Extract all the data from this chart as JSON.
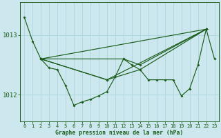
{
  "background_color": "#cce8ee",
  "plot_bg_color": "#cce8ee",
  "line_color": "#1a5c1a",
  "grid_color": "#b0d8e0",
  "xlabel": "Graphe pression niveau de la mer (hPa)",
  "xlabel_color": "#1a5c1a",
  "ylabel_color": "#1a5c1a",
  "tick_color": "#1a5c1a",
  "ytick_labels": [
    "1012",
    "1013"
  ],
  "ytick_vals": [
    1012.0,
    1013.0
  ],
  "xlim": [
    -0.5,
    23.5
  ],
  "ylim": [
    1011.55,
    1013.55
  ],
  "xtick_fontsize": 5.0,
  "ytick_fontsize": 6.5,
  "xlabel_fontsize": 5.8,
  "series_main": [
    [
      0,
      1013.3
    ],
    [
      1,
      1012.9
    ],
    [
      2,
      1012.6
    ],
    [
      3,
      1012.45
    ],
    [
      4,
      1012.42
    ],
    [
      5,
      1012.15
    ],
    [
      6,
      1011.82
    ],
    [
      7,
      1011.88
    ],
    [
      8,
      1011.92
    ],
    [
      9,
      1011.98
    ],
    [
      10,
      1012.05
    ],
    [
      11,
      1012.3
    ],
    [
      12,
      1012.6
    ],
    [
      13,
      1012.5
    ],
    [
      14,
      1012.42
    ],
    [
      15,
      1012.25
    ],
    [
      16,
      1012.25
    ],
    [
      17,
      1012.25
    ],
    [
      18,
      1012.25
    ],
    [
      19,
      1011.98
    ],
    [
      20,
      1012.1
    ],
    [
      21,
      1012.5
    ],
    [
      22,
      1013.1
    ],
    [
      23,
      1012.6
    ]
  ],
  "extra_lines": [
    [
      [
        2,
        1012.6
      ],
      [
        22,
        1013.1
      ]
    ],
    [
      [
        2,
        1012.6
      ],
      [
        10,
        1012.25
      ],
      [
        22,
        1013.1
      ]
    ],
    [
      [
        2,
        1012.6
      ],
      [
        12,
        1012.6
      ],
      [
        14,
        1012.5
      ],
      [
        22,
        1013.1
      ]
    ],
    [
      [
        2,
        1012.6
      ],
      [
        10,
        1012.25
      ],
      [
        14,
        1012.42
      ],
      [
        22,
        1013.1
      ]
    ]
  ],
  "marker_style": "D",
  "marker_size": 2.0,
  "line_width": 0.85
}
